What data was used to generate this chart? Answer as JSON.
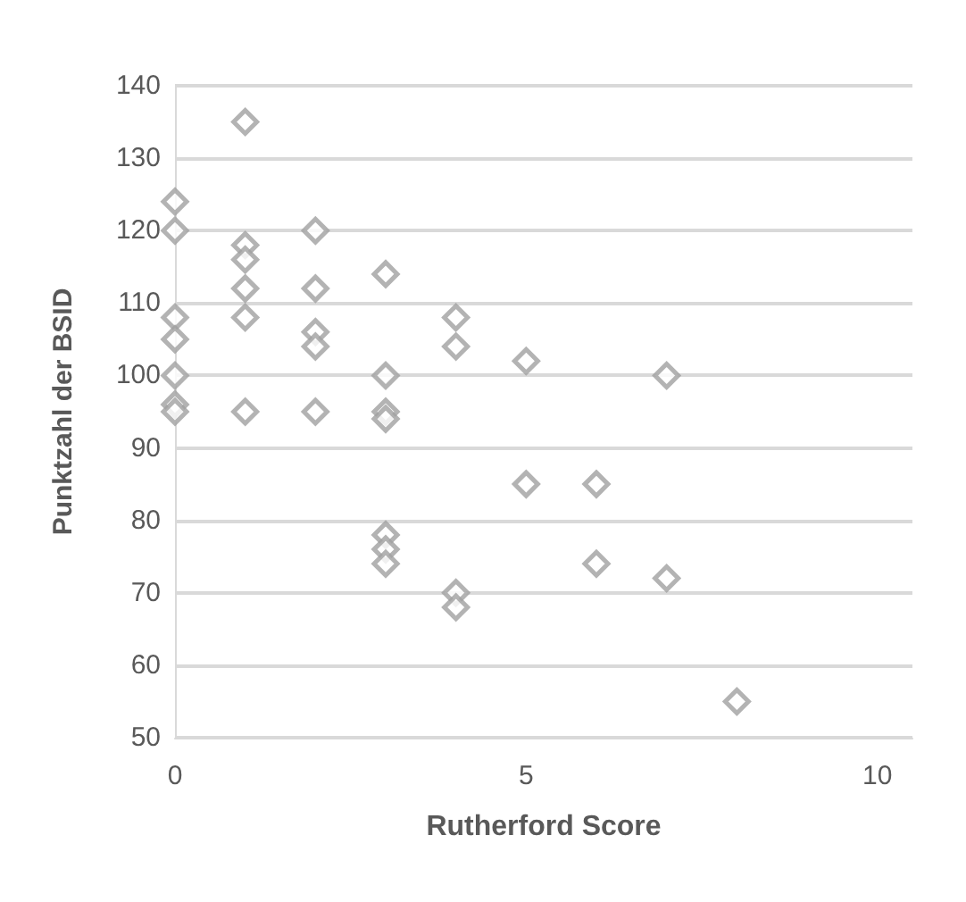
{
  "chart_data": {
    "type": "scatter",
    "xlabel": "Rutherford Score",
    "ylabel": "Punktzahl der BSID",
    "x": [
      0,
      0,
      0,
      0,
      0,
      0,
      0,
      1,
      1,
      1,
      1,
      1,
      1,
      2,
      2,
      2,
      2,
      2,
      3,
      3,
      3,
      3,
      3,
      3,
      3,
      4,
      4,
      4,
      4,
      5,
      5,
      6,
      6,
      7,
      7,
      8
    ],
    "values": [
      124,
      120,
      108,
      105,
      100,
      96,
      95,
      135,
      118,
      116,
      112,
      108,
      95,
      120,
      112,
      106,
      104,
      95,
      114,
      100,
      95,
      94,
      78,
      76,
      74,
      108,
      104,
      70,
      68,
      102,
      85,
      85,
      74,
      100,
      72,
      55
    ],
    "color": "#a0a0a0",
    "marker": "diamond",
    "xlim": [
      0,
      10.5
    ],
    "xticks": [
      0,
      5,
      10
    ],
    "ylim": [
      50,
      140
    ],
    "yticks": [
      50,
      60,
      70,
      80,
      90,
      100,
      110,
      120,
      130,
      140
    ],
    "grid": "y"
  }
}
